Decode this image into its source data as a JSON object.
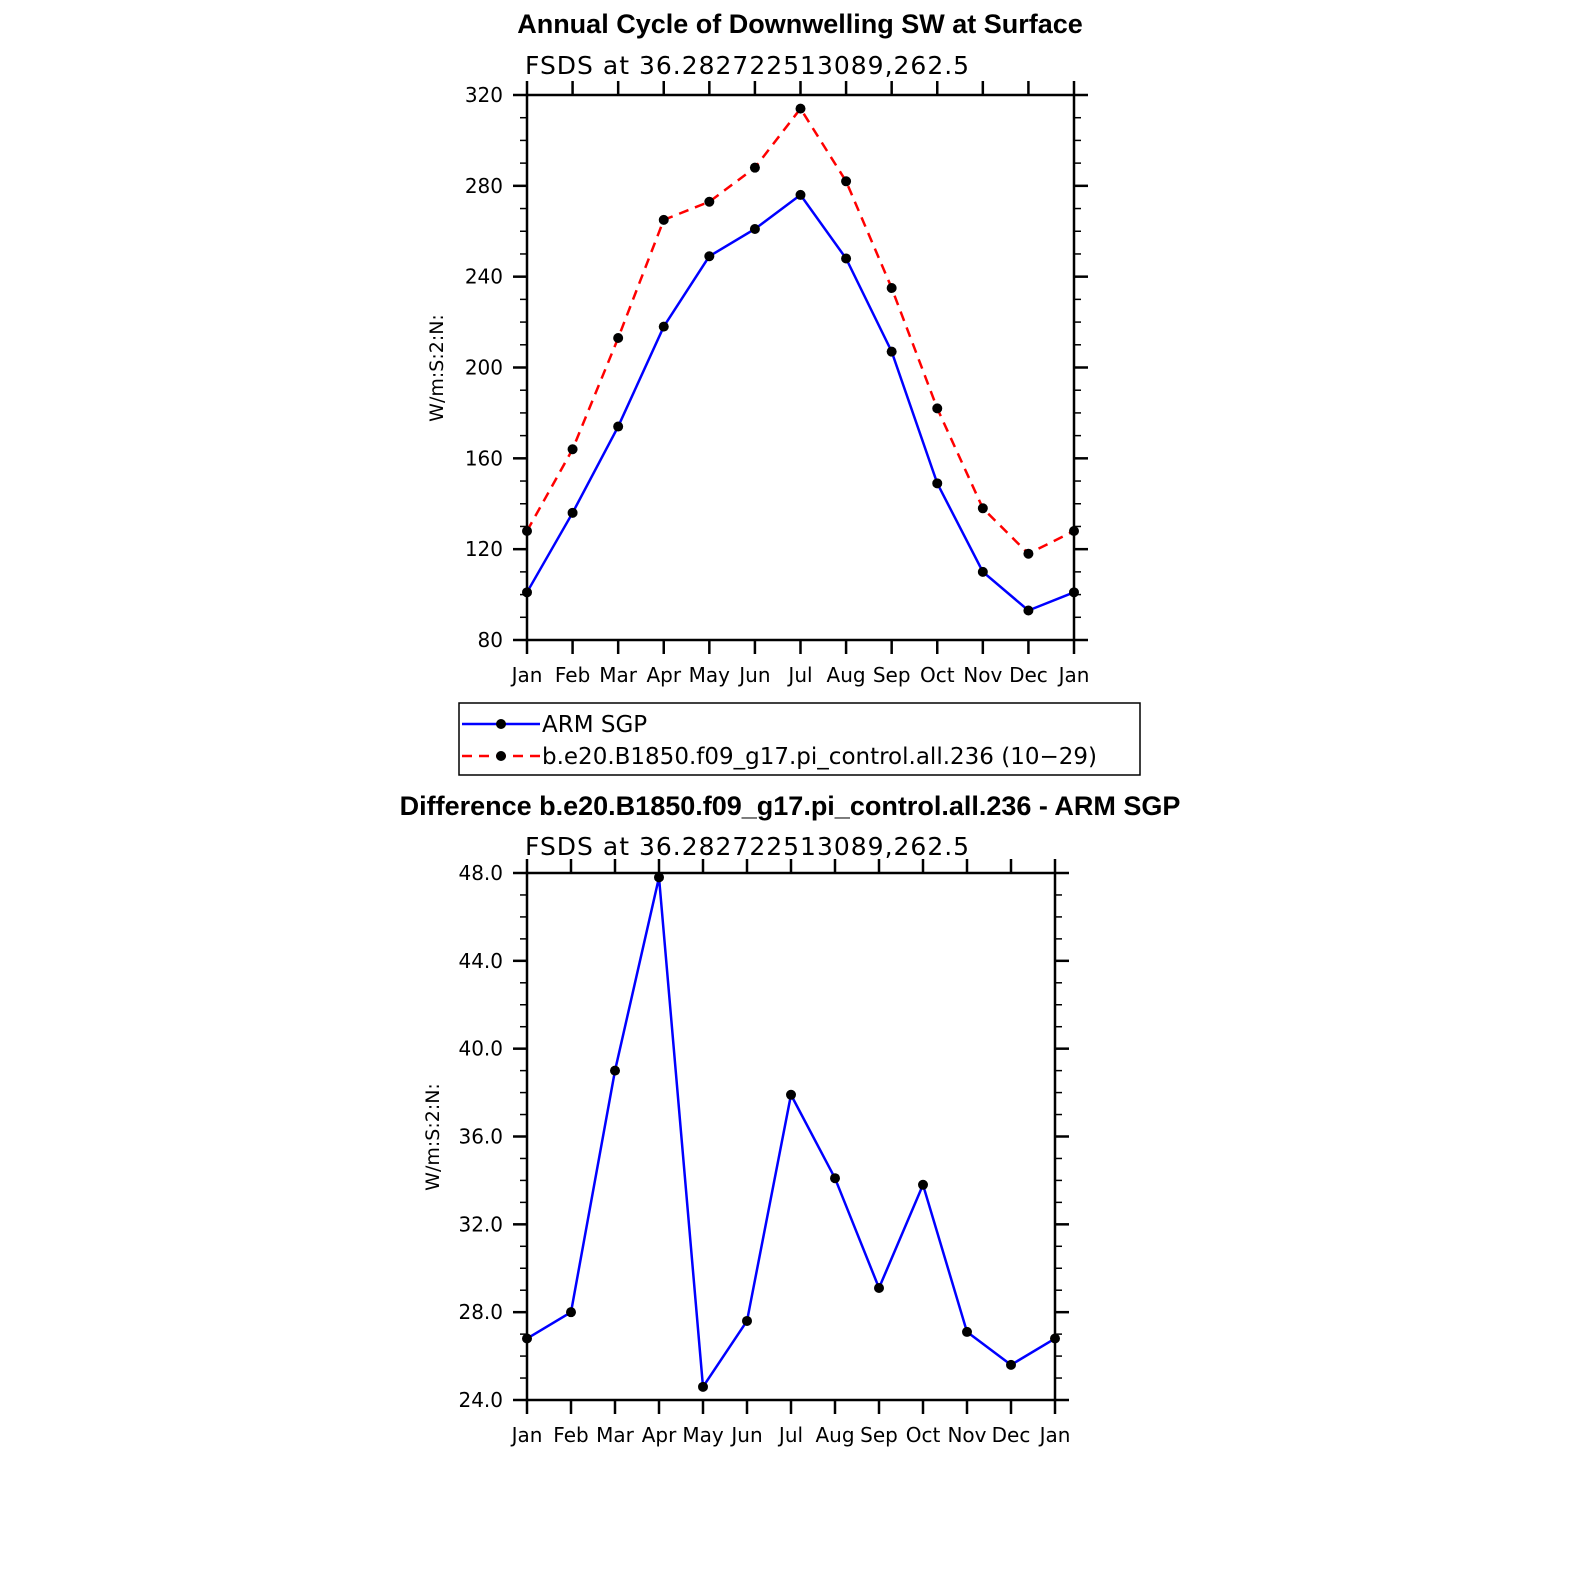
{
  "colors": {
    "series_obs": "#0000ff",
    "series_model": "#ff0000",
    "marker": "#000000"
  },
  "chart_data": [
    {
      "type": "line",
      "title": "Annual Cycle of Downwelling SW at Surface",
      "subtitle": "FSDS at 36.282722513089,262.5",
      "ylabel": "W/m:S:2:N:",
      "xlabel": "",
      "categories": [
        "Jan",
        "Feb",
        "Mar",
        "Apr",
        "May",
        "Jun",
        "Jul",
        "Aug",
        "Sep",
        "Oct",
        "Nov",
        "Dec",
        "Jan"
      ],
      "ylim": [
        80,
        320
      ],
      "yticks": [
        "80",
        "120",
        "160",
        "200",
        "240",
        "280",
        "320"
      ],
      "series": [
        {
          "name": "ARM SGP",
          "style": "solid",
          "color": "#0000ff",
          "values": [
            101,
            136,
            174,
            218,
            249,
            261,
            276,
            248,
            207,
            149,
            110,
            93,
            101
          ]
        },
        {
          "name": "b.e20.B1850.f09_g17.pi_control.all.236 (10−29)",
          "style": "dashed",
          "color": "#ff0000",
          "values": [
            128,
            164,
            213,
            265,
            273,
            288,
            314,
            282,
            235,
            182,
            138,
            118,
            128
          ]
        }
      ],
      "legend": "bottom"
    },
    {
      "type": "line",
      "title": "Difference b.e20.B1850.f09_g17.pi_control.all.236 - ARM SGP",
      "subtitle": "FSDS at 36.282722513089,262.5",
      "ylabel": "W/m:S:2:N:",
      "xlabel": "",
      "categories": [
        "Jan",
        "Feb",
        "Mar",
        "Apr",
        "May",
        "Jun",
        "Jul",
        "Aug",
        "Sep",
        "Oct",
        "Nov",
        "Dec",
        "Jan"
      ],
      "ylim": [
        24,
        48
      ],
      "yticks": [
        "24.0",
        "28.0",
        "32.0",
        "36.0",
        "40.0",
        "44.0",
        "48.0"
      ],
      "series": [
        {
          "style": "solid",
          "color": "#0000ff",
          "values": [
            26.8,
            28.0,
            39.0,
            47.8,
            24.6,
            27.6,
            37.9,
            34.1,
            29.1,
            33.8,
            27.1,
            25.6,
            26.8
          ]
        }
      ]
    }
  ]
}
